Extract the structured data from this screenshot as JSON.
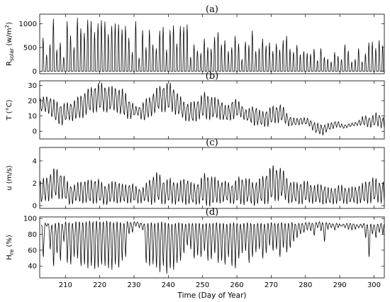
{
  "chart_data": [
    {
      "type": "line",
      "panel_label": "(a)",
      "ylabel_main": "R",
      "ylabel_sub": "solar",
      "ylabel_unit_pre": "(w/m",
      "ylabel_unit_sup": "2",
      "ylabel_unit_post": ")",
      "ylim": [
        -50,
        1200
      ],
      "yticks": [
        0,
        500,
        1000
      ],
      "xlim": [
        202.5,
        303
      ],
      "series": [
        {
          "kind": "diurnal",
          "days": [
            203,
            204,
            205,
            206,
            207,
            208,
            209,
            210,
            211,
            212,
            213,
            214,
            215,
            216,
            217,
            218,
            219,
            220,
            221,
            222,
            223,
            224,
            225,
            226,
            227,
            228,
            229,
            230,
            231,
            232,
            233,
            234,
            235,
            236,
            237,
            238,
            239,
            240,
            241,
            242,
            243,
            244,
            245,
            246,
            247,
            248,
            249,
            250,
            251,
            252,
            253,
            254,
            255,
            256,
            257,
            258,
            259,
            260,
            261,
            262,
            263,
            264,
            265,
            266,
            267,
            268,
            269,
            270,
            271,
            272,
            273,
            274,
            275,
            276,
            277,
            278,
            279,
            280,
            281,
            282,
            283,
            284,
            285,
            286,
            287,
            288,
            289,
            290,
            291,
            292,
            293,
            294,
            295,
            296,
            297,
            298,
            299,
            300,
            301,
            302
          ],
          "day_peaks": [
            700,
            350,
            560,
            1100,
            450,
            600,
            300,
            1050,
            750,
            500,
            1120,
            900,
            800,
            1080,
            1050,
            820,
            1000,
            1070,
            1040,
            780,
            950,
            1000,
            980,
            880,
            950,
            700,
            400,
            1050,
            280,
            860,
            500,
            870,
            560,
            480,
            850,
            930,
            450,
            860,
            960,
            580,
            950,
            930,
            980,
            300,
            560,
            430,
            380,
            680,
            500,
            470,
            720,
            820,
            560,
            650,
            420,
            500,
            740,
            580,
            250,
            620,
            550,
            850,
            420,
            480,
            680,
            540,
            600,
            420,
            580,
            450,
            650,
            740,
            470,
            400,
            550,
            350,
            420,
            380,
            360,
            470,
            230,
            480,
            300,
            260,
            200,
            400,
            320,
            250,
            560,
            430,
            200,
            250,
            480,
            200,
            370,
            600,
            620,
            480,
            650,
            540
          ],
          "baseline": 0
        }
      ]
    },
    {
      "type": "line",
      "panel_label": "(b)",
      "ylabel_main": "T",
      "ylabel_unit": "(°C)",
      "ylim": [
        -5,
        33
      ],
      "yticks": [
        0,
        10,
        20,
        30
      ],
      "xlim": [
        202.5,
        303
      ],
      "series": [
        {
          "kind": "oscillating",
          "days": [
            203,
            205,
            207,
            209,
            211,
            213,
            215,
            217,
            219,
            221,
            223,
            225,
            227,
            229,
            231,
            233,
            235,
            237,
            239,
            241,
            243,
            245,
            247,
            249,
            251,
            253,
            255,
            257,
            259,
            261,
            263,
            265,
            267,
            269,
            271,
            273,
            275,
            277,
            279,
            281,
            283,
            285,
            287,
            289,
            291,
            293,
            295,
            297,
            299,
            301,
            303
          ],
          "means": [
            17,
            18,
            13,
            11,
            13,
            14,
            17,
            20,
            22,
            22,
            21,
            21,
            18,
            14,
            13,
            13,
            17,
            21,
            22,
            22,
            17,
            13,
            12,
            15,
            17,
            15,
            15,
            11,
            15,
            14,
            10,
            11,
            8,
            9,
            11,
            12,
            7,
            6,
            7,
            6,
            2,
            1,
            3,
            5,
            3,
            4,
            5,
            7,
            6,
            8,
            5
          ],
          "amplitudes": [
            4,
            5,
            6,
            6,
            5,
            6,
            7,
            7,
            8,
            8,
            7,
            7,
            8,
            5,
            2,
            6,
            6,
            7,
            8,
            8,
            6,
            5,
            6,
            6,
            8,
            6,
            6,
            4,
            6,
            4,
            3,
            6,
            4,
            5,
            5,
            5,
            3,
            2,
            2,
            2,
            3,
            3,
            2,
            2,
            1,
            1,
            1,
            3,
            3,
            4,
            3
          ]
        }
      ]
    },
    {
      "type": "line",
      "panel_label": "(c)",
      "ylabel_main": "u",
      "ylabel_unit": "(m/s)",
      "ylim": [
        -0.25,
        5.2
      ],
      "yticks": [
        0,
        2,
        4
      ],
      "xlim": [
        202.5,
        303
      ],
      "series": [
        {
          "kind": "oscillating",
          "days": [
            203,
            205,
            207,
            209,
            211,
            213,
            215,
            217,
            219,
            221,
            223,
            225,
            227,
            229,
            231,
            233,
            235,
            237,
            239,
            241,
            243,
            245,
            247,
            249,
            251,
            253,
            255,
            257,
            259,
            261,
            263,
            265,
            267,
            269,
            271,
            273,
            275,
            277,
            279,
            281,
            283,
            285,
            287,
            289,
            291,
            293,
            295,
            297,
            299,
            301,
            303
          ],
          "means": [
            1.2,
            1.6,
            2.0,
            1.8,
            1.0,
            1.1,
            1.3,
            1.2,
            1.4,
            1.0,
            1.1,
            1.3,
            1.0,
            1.2,
            0.9,
            1.0,
            1.4,
            1.6,
            1.2,
            1.3,
            1.1,
            1.4,
            1.0,
            1.2,
            1.5,
            1.3,
            1.3,
            1.2,
            1.1,
            1.4,
            1.3,
            1.1,
            1.3,
            1.7,
            2.0,
            2.0,
            1.3,
            1.1,
            1.2,
            1.2,
            1.0,
            1.1,
            0.8,
            1.0,
            1.0,
            0.9,
            1.0,
            1.1,
            1.4,
            1.3,
            1.2
          ],
          "amplitudes": [
            0.9,
            1.0,
            1.2,
            1.0,
            0.8,
            0.7,
            0.9,
            0.9,
            1.0,
            0.8,
            0.8,
            0.9,
            0.7,
            0.8,
            0.6,
            0.6,
            1.1,
            1.2,
            0.9,
            1.0,
            0.8,
            1.1,
            0.8,
            0.9,
            1.3,
            1.1,
            0.9,
            0.8,
            0.8,
            1.1,
            1.0,
            0.9,
            1.0,
            1.3,
            1.4,
            1.2,
            0.9,
            0.8,
            0.9,
            0.8,
            0.7,
            0.8,
            0.6,
            0.7,
            0.7,
            0.6,
            0.7,
            0.8,
            1.0,
            0.9,
            0.8
          ]
        }
      ]
    },
    {
      "type": "line",
      "panel_label": "(d)",
      "ylabel_main": "H",
      "ylabel_sub": "re",
      "ylabel_unit": "(%)",
      "ylim": [
        25,
        102
      ],
      "yticks": [
        40,
        60,
        80,
        100
      ],
      "xlim": [
        202.5,
        303
      ],
      "xticks": [
        210,
        220,
        230,
        240,
        250,
        260,
        270,
        280,
        290,
        300
      ],
      "xlabel": "Time (Day of Year)",
      "series": [
        {
          "kind": "humidity",
          "days": [
            203,
            204,
            205,
            206,
            207,
            208,
            209,
            210,
            211,
            212,
            213,
            214,
            215,
            216,
            217,
            218,
            219,
            220,
            221,
            222,
            223,
            224,
            225,
            226,
            227,
            228,
            229,
            230,
            231,
            232,
            233,
            234,
            235,
            236,
            237,
            238,
            239,
            240,
            241,
            242,
            243,
            244,
            245,
            246,
            247,
            248,
            249,
            250,
            251,
            252,
            253,
            254,
            255,
            256,
            257,
            258,
            259,
            260,
            261,
            262,
            263,
            264,
            265,
            266,
            267,
            268,
            269,
            270,
            271,
            272,
            273,
            274,
            275,
            276,
            277,
            278,
            279,
            280,
            281,
            282,
            283,
            284,
            285,
            286,
            287,
            288,
            289,
            290,
            291,
            292,
            293,
            294,
            295,
            296,
            297,
            298,
            299,
            300,
            301,
            302
          ],
          "day_minima": [
            50,
            90,
            60,
            38,
            55,
            45,
            70,
            42,
            40,
            50,
            48,
            38,
            40,
            35,
            38,
            34,
            36,
            40,
            38,
            35,
            33,
            40,
            36,
            45,
            50,
            80,
            82,
            90,
            88,
            85,
            42,
            38,
            40,
            36,
            30,
            38,
            28,
            35,
            33,
            42,
            45,
            55,
            65,
            60,
            48,
            52,
            50,
            58,
            45,
            47,
            55,
            42,
            45,
            40,
            50,
            38,
            35,
            48,
            55,
            58,
            42,
            50,
            56,
            60,
            48,
            55,
            65,
            58,
            60,
            50,
            62,
            56,
            62,
            70,
            75,
            80,
            82,
            85,
            84,
            78,
            88,
            84,
            70,
            86,
            88,
            85,
            88,
            90,
            88,
            86,
            85,
            86,
            88,
            88,
            75,
            50,
            80,
            75,
            82,
            80
          ],
          "day_maxima": [
            92,
            94,
            93,
            92,
            94,
            95,
            93,
            96,
            95,
            94,
            96,
            96,
            95,
            96,
            97,
            96,
            97,
            96,
            96,
            97,
            96,
            95,
            96,
            95,
            94,
            96,
            95,
            96,
            95,
            94,
            93,
            94,
            95,
            94,
            95,
            96,
            95,
            94,
            93,
            94,
            95,
            94,
            93,
            94,
            94,
            94,
            94,
            93,
            94,
            94,
            94,
            95,
            94,
            94,
            93,
            94,
            95,
            94,
            93,
            94,
            95,
            94,
            93,
            94,
            94,
            93,
            94,
            95,
            94,
            94,
            95,
            94,
            94,
            95,
            93,
            94,
            94,
            95,
            95,
            94,
            95,
            96,
            94,
            95,
            94,
            93,
            94,
            92,
            93,
            94,
            94,
            93,
            92,
            93,
            94,
            92,
            93,
            92,
            93,
            94
          ]
        }
      ]
    }
  ]
}
